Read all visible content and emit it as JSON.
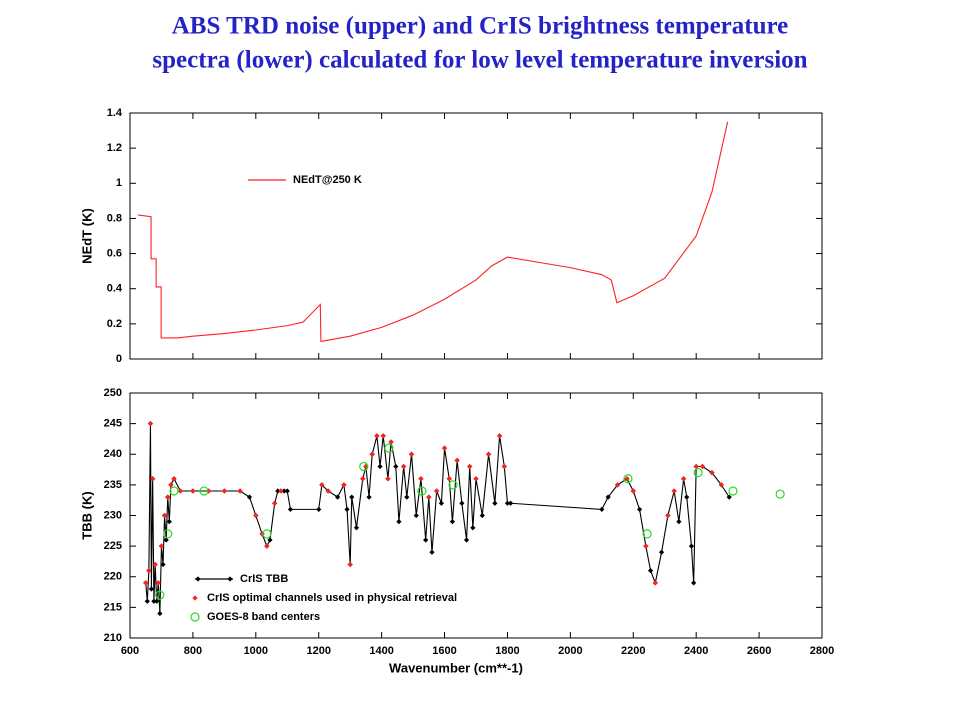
{
  "title": [
    "ABS TRD noise (upper) and CrIS brightness temperature",
    "spectra (lower) calculated for low level temperature inversion"
  ],
  "chart_data": [
    {
      "type": "line",
      "ylabel": "NEdT (K)",
      "xlim": [
        600,
        2800
      ],
      "ylim": [
        0,
        1.4
      ],
      "yticks": [
        0,
        0.2,
        0.4,
        0.6,
        0.8,
        1,
        1.2,
        1.4
      ],
      "legend": "upper center",
      "series": [
        {
          "name": "NEdT@250 K",
          "color": "#ff2020",
          "line": true,
          "x": [
            625,
            667,
            667,
            683,
            683,
            699,
            699,
            750,
            800,
            900,
            1000,
            1100,
            1150,
            1205,
            1207,
            1300,
            1400,
            1500,
            1600,
            1700,
            1750,
            1800,
            1900,
            2000,
            2100,
            2130,
            2148,
            2200,
            2300,
            2400,
            2450,
            2500
          ],
          "values": [
            0.82,
            0.81,
            0.57,
            0.57,
            0.41,
            0.41,
            0.12,
            0.12,
            0.13,
            0.145,
            0.165,
            0.19,
            0.21,
            0.31,
            0.1,
            0.13,
            0.18,
            0.25,
            0.34,
            0.45,
            0.53,
            0.58,
            0.55,
            0.52,
            0.48,
            0.45,
            0.32,
            0.36,
            0.46,
            0.7,
            0.95,
            1.35
          ]
        }
      ]
    },
    {
      "type": "line",
      "xlabel": "Wavenumber (cm**-1)",
      "ylabel": "TBB (K)",
      "xlim": [
        600,
        2800
      ],
      "ylim": [
        210,
        250
      ],
      "xticks": [
        600,
        800,
        1000,
        1200,
        1400,
        1600,
        1800,
        2000,
        2200,
        2400,
        2600,
        2800
      ],
      "yticks": [
        210,
        215,
        220,
        225,
        230,
        235,
        240,
        245,
        250
      ],
      "legend": "lower left",
      "series": [
        {
          "name": "CrIS TBB",
          "color": "#000000",
          "line": true,
          "marker": "diamond",
          "x": [
            650,
            655,
            660,
            665,
            668,
            672,
            676,
            680,
            685,
            690,
            695,
            700,
            705,
            710,
            715,
            720,
            725,
            730,
            740,
            760,
            800,
            850,
            900,
            950,
            980,
            1000,
            1020,
            1035,
            1045,
            1060,
            1070,
            1080,
            1090,
            1100,
            1110,
            1200,
            1210,
            1230,
            1260,
            1280,
            1290,
            1300,
            1305,
            1320,
            1340,
            1350,
            1360,
            1370,
            1385,
            1395,
            1405,
            1420,
            1430,
            1445,
            1455,
            1470,
            1480,
            1495,
            1510,
            1525,
            1540,
            1550,
            1560,
            1575,
            1590,
            1600,
            1615,
            1625,
            1640,
            1655,
            1670,
            1680,
            1690,
            1700,
            1720,
            1740,
            1760,
            1775,
            1790,
            1800,
            1810,
            2100,
            2120,
            2150,
            2180,
            2200,
            2220,
            2240,
            2255,
            2270,
            2290,
            2310,
            2330,
            2345,
            2360,
            2370,
            2385,
            2392,
            2400,
            2420,
            2450,
            2480,
            2505
          ],
          "values": [
            219,
            216,
            221,
            245,
            218,
            236,
            216,
            222,
            216,
            219,
            214,
            225,
            222,
            230,
            226,
            233,
            229,
            235,
            236,
            234,
            234,
            234,
            234,
            234,
            233,
            230,
            227,
            225,
            226,
            232,
            234,
            234,
            234,
            234,
            231,
            231,
            235,
            234,
            233,
            235,
            231,
            222,
            233,
            228,
            236,
            238,
            233,
            240,
            243,
            238,
            243,
            236,
            242,
            238,
            229,
            238,
            233,
            240,
            230,
            236,
            226,
            233,
            224,
            234,
            232,
            241,
            236,
            229,
            239,
            232,
            226,
            238,
            228,
            236,
            230,
            240,
            232,
            243,
            238,
            232,
            232,
            231,
            233,
            235,
            236,
            234,
            231,
            225,
            221,
            219,
            224,
            230,
            234,
            229,
            236,
            233,
            225,
            219,
            238,
            238,
            237,
            235,
            233
          ]
        },
        {
          "name": "CrIS optimal channels used in physical retrieval",
          "color": "#ff2020",
          "line": false,
          "marker": "diamond",
          "x": [
            650,
            660,
            665,
            672,
            680,
            690,
            700,
            710,
            720,
            730,
            740,
            760,
            800,
            850,
            900,
            950,
            1000,
            1020,
            1035,
            1060,
            1080,
            1210,
            1230,
            1280,
            1300,
            1340,
            1350,
            1370,
            1385,
            1405,
            1420,
            1430,
            1470,
            1495,
            1525,
            1550,
            1575,
            1600,
            1615,
            1640,
            1680,
            1700,
            1740,
            1775,
            1790,
            2150,
            2180,
            2200,
            2240,
            2270,
            2310,
            2330,
            2360,
            2400,
            2420,
            2450,
            2480
          ],
          "values": [
            219,
            221,
            245,
            236,
            222,
            219,
            225,
            230,
            233,
            235,
            236,
            234,
            234,
            234,
            234,
            234,
            230,
            227,
            225,
            232,
            234,
            235,
            234,
            235,
            222,
            236,
            238,
            240,
            243,
            243,
            236,
            242,
            238,
            240,
            236,
            233,
            234,
            241,
            236,
            239,
            238,
            236,
            240,
            243,
            238,
            235,
            236,
            234,
            225,
            219,
            230,
            234,
            236,
            238,
            238,
            237,
            235
          ]
        },
        {
          "name": "GOES-8 band centers",
          "color": "#22dd22",
          "line": false,
          "marker": "circle",
          "x": [
            695,
            720,
            740,
            835,
            1035,
            1343,
            1423,
            1528,
            1627,
            2183,
            2244,
            2406,
            2517,
            2667
          ],
          "values": [
            217,
            227,
            234,
            234,
            227,
            238,
            241,
            234,
            235,
            236,
            227,
            237,
            234,
            233.5
          ]
        }
      ]
    }
  ]
}
